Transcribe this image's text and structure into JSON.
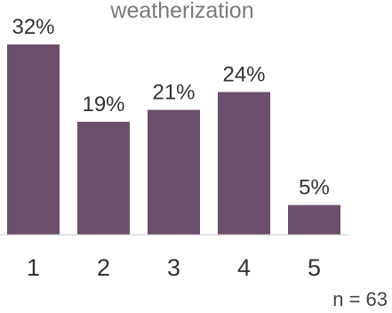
{
  "chart_data": {
    "type": "bar",
    "title": "weatherization",
    "categories": [
      "1",
      "2",
      "3",
      "4",
      "5"
    ],
    "values": [
      32,
      19,
      21,
      24,
      5
    ],
    "data_labels": [
      "32%",
      "19%",
      "21%",
      "24%",
      "5%"
    ],
    "ylim": [
      0,
      32
    ],
    "grid": false,
    "bar_color": "#6b4f6b",
    "axis_color": "#c8c8c8"
  },
  "footnote": "n = 63"
}
